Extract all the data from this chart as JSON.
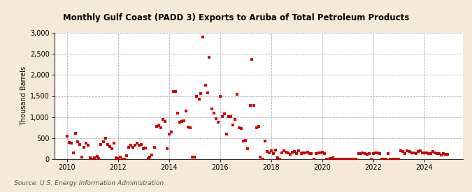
{
  "title": "Monthly Gulf Coast (PADD 3) Exports to Aruba of Total Petroleum Products",
  "ylabel": "Thousand Barrels",
  "source": "Source: U.S. Energy Information Administration",
  "background_color": "#f5ead8",
  "plot_background_color": "#ffffff",
  "marker_color": "#cc0000",
  "marker_size": 3,
  "marker_style": "s",
  "ylim": [
    0,
    3000
  ],
  "yticks": [
    0,
    500,
    1000,
    1500,
    2000,
    2500,
    3000
  ],
  "xlim_start": 2009.5,
  "xlim_end": 2025.5,
  "xtick_years": [
    2010,
    2012,
    2014,
    2016,
    2018,
    2020,
    2022,
    2024
  ],
  "data": [
    [
      2010.0,
      550
    ],
    [
      2010.08,
      400
    ],
    [
      2010.17,
      380
    ],
    [
      2010.25,
      150
    ],
    [
      2010.33,
      620
    ],
    [
      2010.42,
      420
    ],
    [
      2010.5,
      350
    ],
    [
      2010.58,
      50
    ],
    [
      2010.67,
      280
    ],
    [
      2010.75,
      380
    ],
    [
      2010.83,
      330
    ],
    [
      2010.92,
      30
    ],
    [
      2011.0,
      10
    ],
    [
      2011.08,
      40
    ],
    [
      2011.17,
      70
    ],
    [
      2011.25,
      20
    ],
    [
      2011.33,
      350
    ],
    [
      2011.42,
      420
    ],
    [
      2011.5,
      500
    ],
    [
      2011.58,
      350
    ],
    [
      2011.67,
      300
    ],
    [
      2011.75,
      250
    ],
    [
      2011.83,
      380
    ],
    [
      2011.92,
      30
    ],
    [
      2012.0,
      20
    ],
    [
      2012.08,
      50
    ],
    [
      2012.17,
      10
    ],
    [
      2012.25,
      10
    ],
    [
      2012.33,
      80
    ],
    [
      2012.42,
      280
    ],
    [
      2012.5,
      340
    ],
    [
      2012.58,
      280
    ],
    [
      2012.67,
      330
    ],
    [
      2012.75,
      380
    ],
    [
      2012.83,
      330
    ],
    [
      2012.92,
      350
    ],
    [
      2013.0,
      250
    ],
    [
      2013.08,
      270
    ],
    [
      2013.17,
      20
    ],
    [
      2013.25,
      60
    ],
    [
      2013.33,
      100
    ],
    [
      2013.42,
      280
    ],
    [
      2013.5,
      780
    ],
    [
      2013.58,
      800
    ],
    [
      2013.67,
      750
    ],
    [
      2013.75,
      950
    ],
    [
      2013.83,
      900
    ],
    [
      2013.92,
      250
    ],
    [
      2014.0,
      600
    ],
    [
      2014.08,
      650
    ],
    [
      2014.17,
      1600
    ],
    [
      2014.25,
      1600
    ],
    [
      2014.33,
      1100
    ],
    [
      2014.42,
      880
    ],
    [
      2014.5,
      900
    ],
    [
      2014.58,
      920
    ],
    [
      2014.67,
      1150
    ],
    [
      2014.75,
      760
    ],
    [
      2014.83,
      750
    ],
    [
      2014.92,
      60
    ],
    [
      2015.0,
      60
    ],
    [
      2015.08,
      1500
    ],
    [
      2015.17,
      1430
    ],
    [
      2015.25,
      1550
    ],
    [
      2015.33,
      2900
    ],
    [
      2015.42,
      1750
    ],
    [
      2015.5,
      1580
    ],
    [
      2015.58,
      2420
    ],
    [
      2015.67,
      1200
    ],
    [
      2015.75,
      1100
    ],
    [
      2015.83,
      960
    ],
    [
      2015.92,
      880
    ],
    [
      2016.0,
      1500
    ],
    [
      2016.08,
      1010
    ],
    [
      2016.17,
      1080
    ],
    [
      2016.25,
      600
    ],
    [
      2016.33,
      1010
    ],
    [
      2016.42,
      1020
    ],
    [
      2016.5,
      820
    ],
    [
      2016.58,
      940
    ],
    [
      2016.67,
      1540
    ],
    [
      2016.75,
      750
    ],
    [
      2016.83,
      730
    ],
    [
      2016.92,
      430
    ],
    [
      2017.0,
      450
    ],
    [
      2017.08,
      250
    ],
    [
      2017.17,
      1270
    ],
    [
      2017.25,
      2360
    ],
    [
      2017.33,
      1280
    ],
    [
      2017.42,
      750
    ],
    [
      2017.5,
      780
    ],
    [
      2017.58,
      50
    ],
    [
      2017.67,
      10
    ],
    [
      2017.75,
      430
    ],
    [
      2017.83,
      180
    ],
    [
      2017.92,
      150
    ],
    [
      2018.0,
      200
    ],
    [
      2018.08,
      130
    ],
    [
      2018.17,
      220
    ],
    [
      2018.25,
      30
    ],
    [
      2018.33,
      0
    ],
    [
      2018.42,
      160
    ],
    [
      2018.5,
      200
    ],
    [
      2018.58,
      170
    ],
    [
      2018.67,
      150
    ],
    [
      2018.75,
      120
    ],
    [
      2018.83,
      170
    ],
    [
      2018.92,
      180
    ],
    [
      2019.0,
      140
    ],
    [
      2019.08,
      200
    ],
    [
      2019.17,
      140
    ],
    [
      2019.25,
      150
    ],
    [
      2019.33,
      150
    ],
    [
      2019.42,
      170
    ],
    [
      2019.5,
      130
    ],
    [
      2019.58,
      140
    ],
    [
      2019.67,
      0
    ],
    [
      2019.75,
      130
    ],
    [
      2019.83,
      150
    ],
    [
      2019.92,
      150
    ],
    [
      2020.0,
      170
    ],
    [
      2020.08,
      130
    ],
    [
      2020.17,
      0
    ],
    [
      2020.25,
      0
    ],
    [
      2020.33,
      20
    ],
    [
      2020.42,
      40
    ],
    [
      2020.5,
      0
    ],
    [
      2020.58,
      0
    ],
    [
      2020.67,
      0
    ],
    [
      2020.75,
      0
    ],
    [
      2020.83,
      0
    ],
    [
      2020.92,
      0
    ],
    [
      2021.0,
      0
    ],
    [
      2021.08,
      0
    ],
    [
      2021.17,
      0
    ],
    [
      2021.25,
      0
    ],
    [
      2021.33,
      0
    ],
    [
      2021.42,
      130
    ],
    [
      2021.5,
      130
    ],
    [
      2021.58,
      160
    ],
    [
      2021.67,
      140
    ],
    [
      2021.75,
      120
    ],
    [
      2021.83,
      130
    ],
    [
      2021.92,
      0
    ],
    [
      2022.0,
      130
    ],
    [
      2022.08,
      160
    ],
    [
      2022.17,
      150
    ],
    [
      2022.25,
      130
    ],
    [
      2022.33,
      0
    ],
    [
      2022.42,
      0
    ],
    [
      2022.5,
      0
    ],
    [
      2022.58,
      130
    ],
    [
      2022.67,
      0
    ],
    [
      2022.75,
      0
    ],
    [
      2022.83,
      0
    ],
    [
      2022.92,
      0
    ],
    [
      2023.0,
      0
    ],
    [
      2023.08,
      200
    ],
    [
      2023.17,
      180
    ],
    [
      2023.25,
      130
    ],
    [
      2023.33,
      200
    ],
    [
      2023.42,
      180
    ],
    [
      2023.5,
      160
    ],
    [
      2023.58,
      160
    ],
    [
      2023.67,
      130
    ],
    [
      2023.75,
      180
    ],
    [
      2023.83,
      200
    ],
    [
      2023.92,
      150
    ],
    [
      2024.0,
      150
    ],
    [
      2024.08,
      160
    ],
    [
      2024.17,
      130
    ],
    [
      2024.25,
      130
    ],
    [
      2024.33,
      180
    ],
    [
      2024.42,
      150
    ],
    [
      2024.5,
      140
    ],
    [
      2024.58,
      130
    ],
    [
      2024.67,
      100
    ],
    [
      2024.75,
      130
    ],
    [
      2024.83,
      120
    ],
    [
      2024.92,
      120
    ]
  ]
}
